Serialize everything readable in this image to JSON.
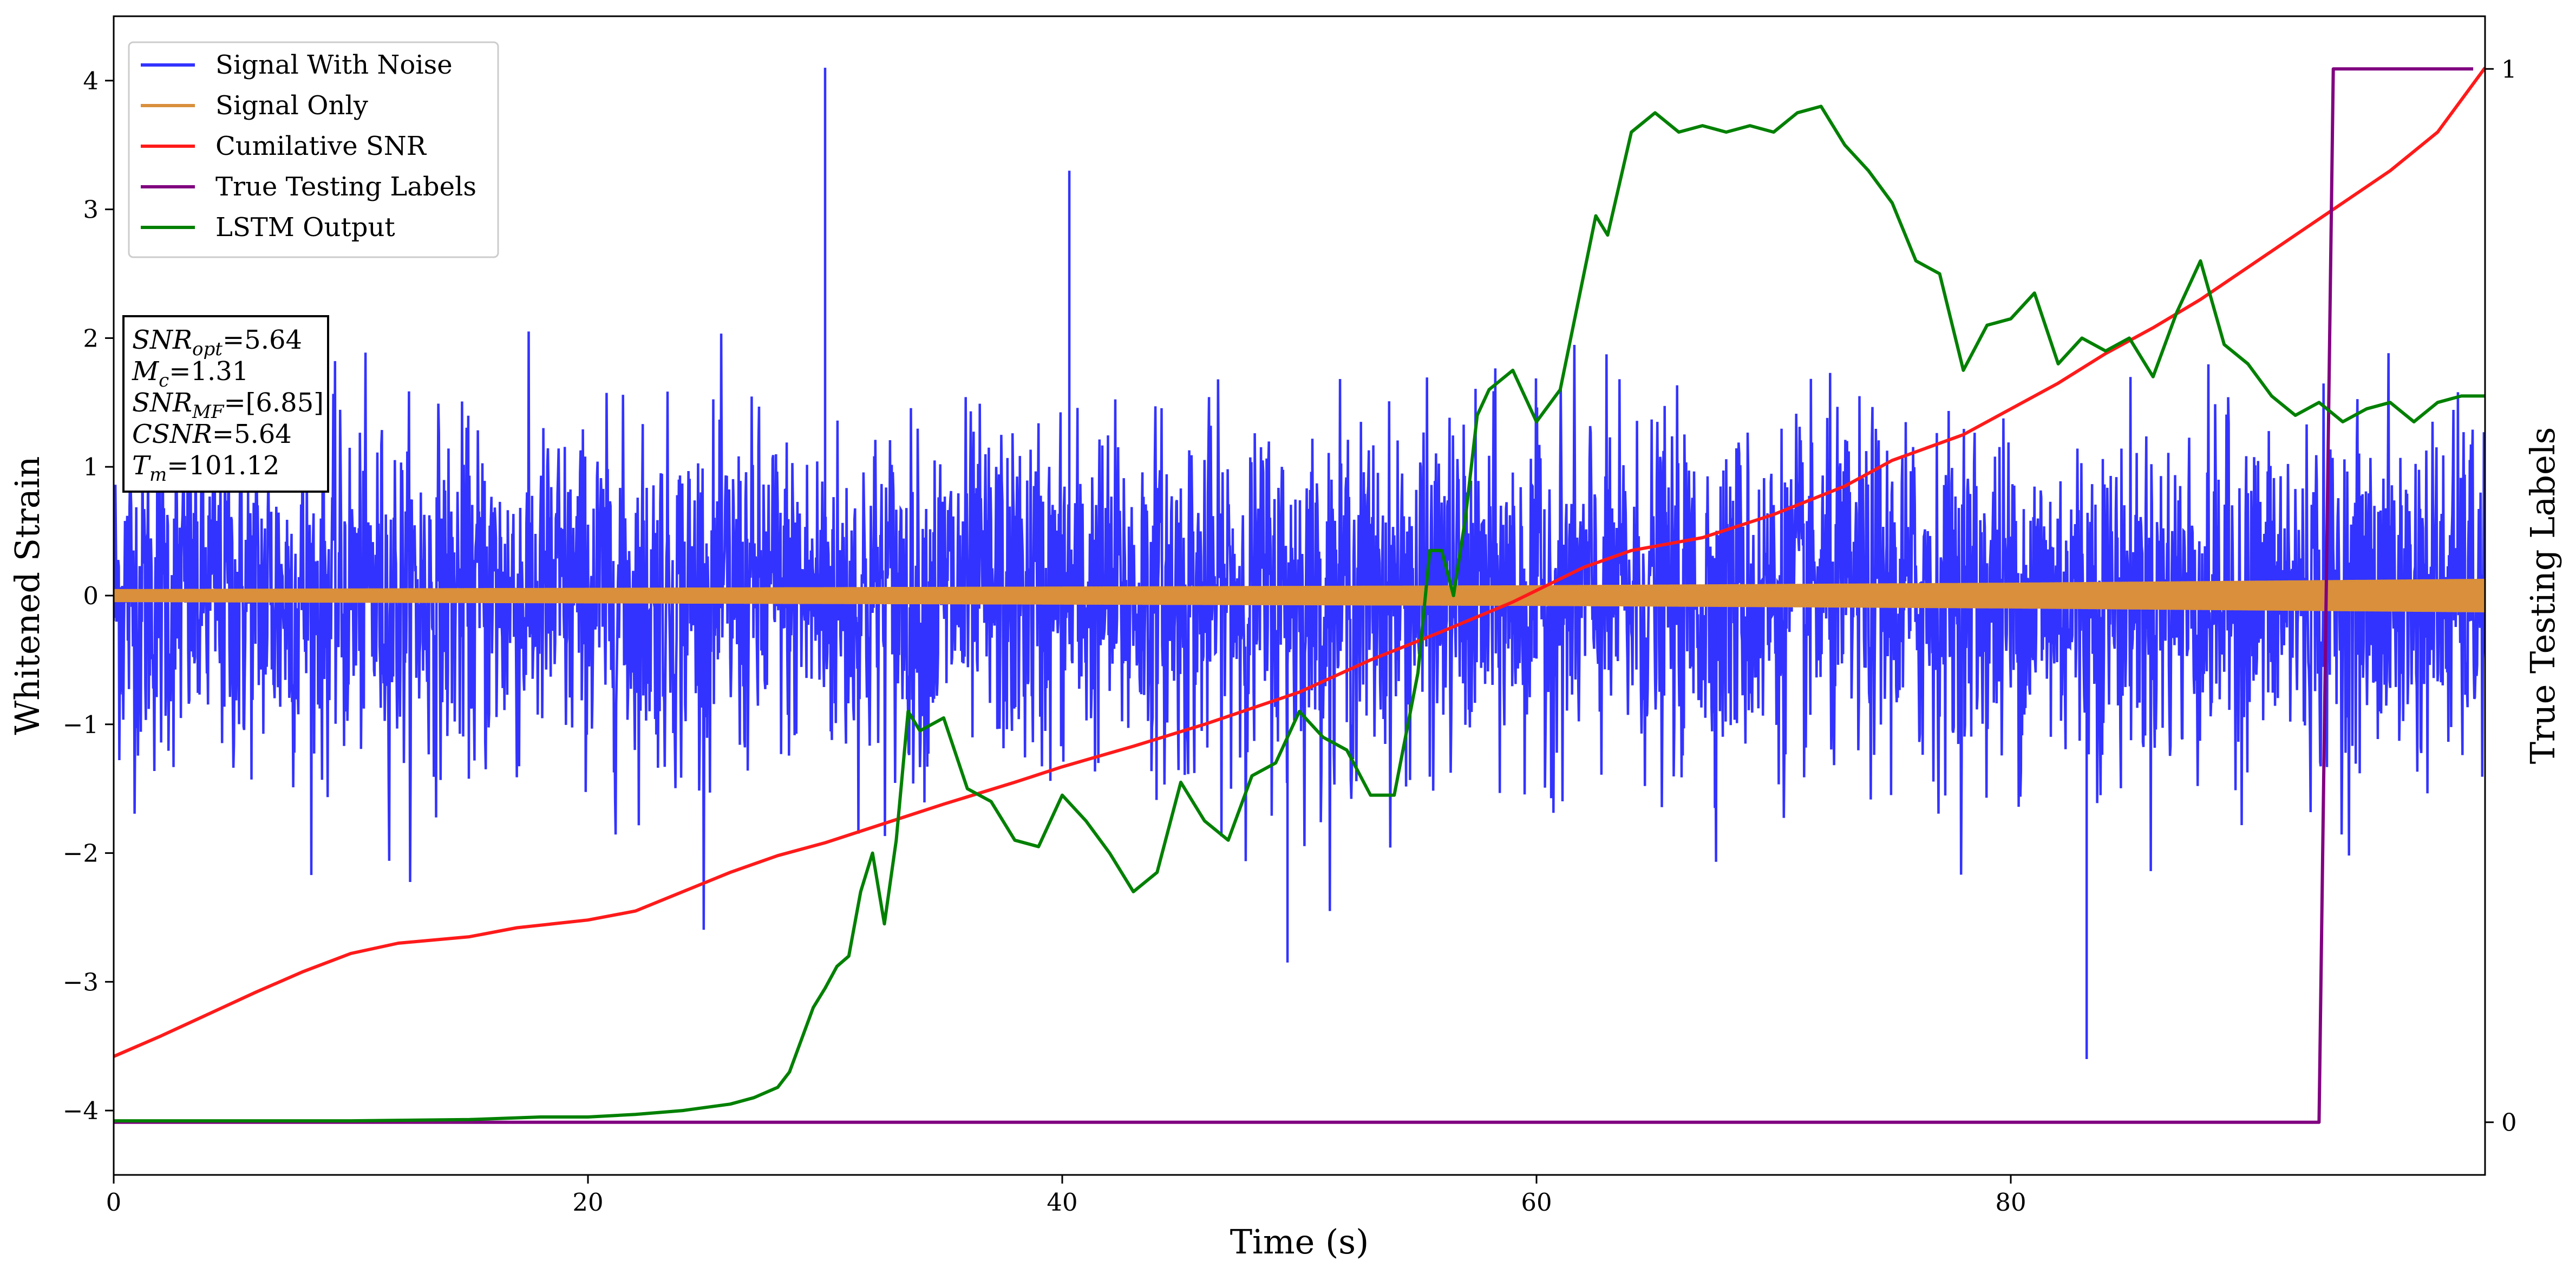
{
  "chart_data": {
    "type": "line",
    "xlabel": "Time (s)",
    "ylabel": "Whitened Strain",
    "y2label": "True Testing Labels",
    "xlim": [
      0,
      100
    ],
    "ylim": [
      -4.5,
      4.5
    ],
    "y2lim": [
      -0.05,
      1.05
    ],
    "x_ticks": [
      0,
      20,
      40,
      60,
      80
    ],
    "y_ticks": [
      -4,
      -3,
      -2,
      -1,
      0,
      1,
      2,
      3,
      4
    ],
    "y2_ticks": [
      0,
      1
    ],
    "grid": false,
    "legend_placement": "top-left",
    "series": [
      {
        "name": "Signal With Noise",
        "color": "#3333ff",
        "axis": "left",
        "kind": "noise",
        "approx_std": 0.75,
        "approx_range": [
          -3.6,
          4.1
        ],
        "notable_peaks": [
          {
            "x": 30.0,
            "y": 4.1
          },
          {
            "x": 40.3,
            "y": 3.3
          },
          {
            "x": 83.2,
            "y": -3.6
          },
          {
            "x": 49.5,
            "y": -2.85
          }
        ]
      },
      {
        "name": "Signal Only",
        "color": "#d98f3b",
        "axis": "left",
        "kind": "chirp",
        "amplitude": {
          "x": [
            0,
            20,
            40,
            60,
            80,
            100
          ],
          "y": [
            0.05,
            0.06,
            0.07,
            0.08,
            0.1,
            0.13
          ]
        }
      },
      {
        "name": "Cumilative SNR",
        "color": "#ff1a1a",
        "axis": "left",
        "x": [
          0,
          2,
          4,
          6,
          8,
          10,
          12,
          15,
          17,
          20,
          22,
          24,
          26,
          28,
          30,
          32,
          35,
          38,
          40,
          43,
          46,
          50,
          53,
          56,
          59,
          62,
          64,
          67,
          70,
          73,
          75,
          78,
          80,
          82,
          84,
          86,
          88,
          90,
          92,
          94,
          96,
          98,
          100
        ],
        "y": [
          -3.58,
          -3.42,
          -3.25,
          -3.08,
          -2.92,
          -2.78,
          -2.7,
          -2.65,
          -2.58,
          -2.52,
          -2.45,
          -2.3,
          -2.15,
          -2.02,
          -1.92,
          -1.8,
          -1.62,
          -1.45,
          -1.33,
          -1.17,
          -1.0,
          -0.75,
          -0.5,
          -0.28,
          -0.05,
          0.22,
          0.35,
          0.45,
          0.63,
          0.85,
          1.05,
          1.25,
          1.45,
          1.65,
          1.88,
          2.08,
          2.3,
          2.55,
          2.8,
          3.05,
          3.3,
          3.6,
          4.1
        ]
      },
      {
        "name": "True Testing Labels",
        "color": "#800080",
        "axis": "right",
        "x": [
          0,
          93.0,
          93.6,
          99.5
        ],
        "y": [
          0,
          0,
          1,
          1
        ]
      },
      {
        "name": "LSTM Output",
        "color": "#008000",
        "axis": "left",
        "x": [
          0,
          10,
          15,
          18,
          20,
          22,
          24,
          26,
          27,
          28,
          28.5,
          29,
          29.5,
          30,
          30.5,
          31,
          31.5,
          32,
          32.5,
          33,
          33.5,
          34,
          35,
          36,
          37,
          38,
          39,
          40,
          41,
          42,
          43,
          44,
          45,
          46,
          47,
          48,
          49,
          50,
          51,
          52,
          53,
          54,
          55,
          55.5,
          56,
          56.5,
          57,
          57.5,
          58,
          59,
          60,
          61,
          62,
          62.5,
          63,
          64,
          65,
          66,
          67,
          68,
          69,
          70,
          71,
          72,
          73,
          74,
          75,
          76,
          77,
          78,
          79,
          80,
          81,
          82,
          83,
          84,
          85,
          86,
          87,
          88,
          89,
          90,
          91,
          92,
          93,
          94,
          95,
          96,
          97,
          98,
          99,
          100
        ],
        "y": [
          -4.08,
          -4.08,
          -4.07,
          -4.05,
          -4.05,
          -4.03,
          -4.0,
          -3.95,
          -3.9,
          -3.82,
          -3.7,
          -3.45,
          -3.2,
          -3.05,
          -2.88,
          -2.8,
          -2.3,
          -2.0,
          -2.55,
          -1.9,
          -0.9,
          -1.05,
          -0.95,
          -1.5,
          -1.6,
          -1.9,
          -1.95,
          -1.55,
          -1.75,
          -2.0,
          -2.3,
          -2.15,
          -1.45,
          -1.75,
          -1.9,
          -1.4,
          -1.3,
          -0.9,
          -1.1,
          -1.2,
          -1.55,
          -1.55,
          -0.6,
          0.35,
          0.35,
          0.0,
          0.6,
          1.4,
          1.6,
          1.75,
          1.35,
          1.6,
          2.5,
          2.95,
          2.8,
          3.6,
          3.75,
          3.6,
          3.65,
          3.6,
          3.65,
          3.6,
          3.75,
          3.8,
          3.5,
          3.3,
          3.05,
          2.6,
          2.5,
          1.75,
          2.1,
          2.15,
          2.35,
          1.8,
          2.0,
          1.9,
          2.0,
          1.7,
          2.2,
          2.6,
          1.95,
          1.8,
          1.55,
          1.4,
          1.5,
          1.35,
          1.45,
          1.5,
          1.35,
          1.5,
          1.55,
          1.55
        ]
      }
    ],
    "annotation": [
      {
        "name": "SNR",
        "sub": "opt",
        "value": "=5.64"
      },
      {
        "name": "M",
        "sub": "c",
        "value": "=1.31"
      },
      {
        "name": "SNR",
        "sub": "MF",
        "value": "=[6.85]"
      },
      {
        "name": "CSNR",
        "sub": "",
        "value": "=5.64"
      },
      {
        "name": "T",
        "sub": "m",
        "value": "=101.12"
      }
    ]
  }
}
